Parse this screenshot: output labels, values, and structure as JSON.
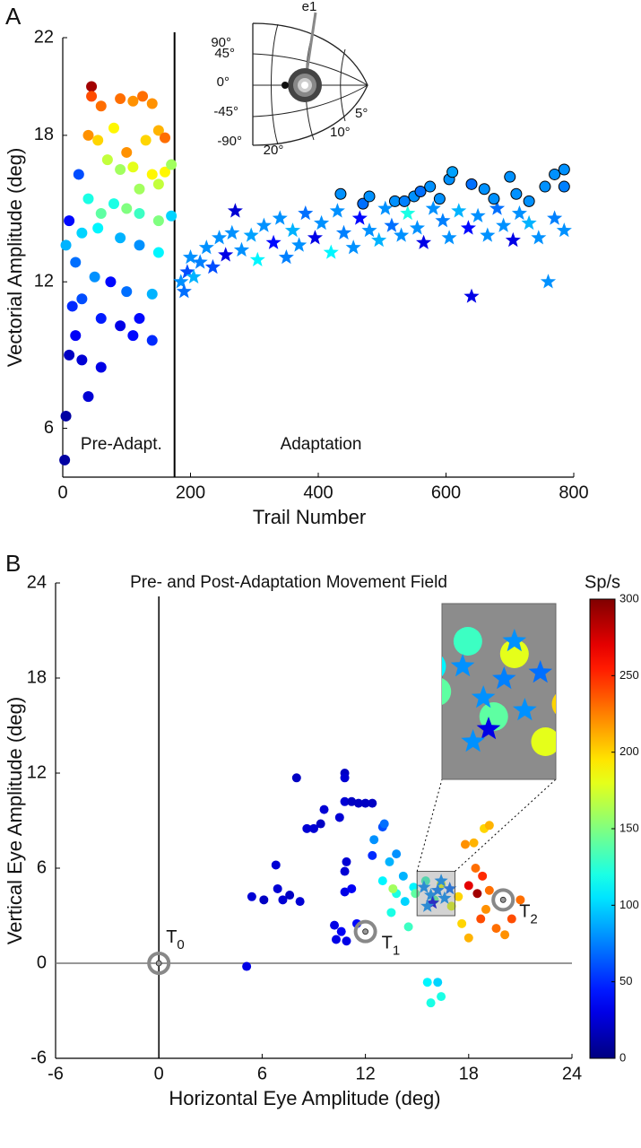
{
  "chart_data": [
    {
      "type": "scatter",
      "panel": "A",
      "xlabel": "Trail Number",
      "ylabel": "Vectorial Amplitude (deg)",
      "xlim": [
        0,
        800
      ],
      "ylim": [
        4,
        22
      ],
      "xticks": [
        0,
        200,
        400,
        600,
        800
      ],
      "yticks": [
        6,
        12,
        18,
        22
      ],
      "boundary": 175,
      "region_labels": [
        "Pre-Adapt.",
        "Adaptation"
      ],
      "inset_labels": [
        "90°",
        "45°",
        "0°",
        "-45°",
        "-90°",
        "5°",
        "10°",
        "20°",
        "e1"
      ],
      "colormap": "jet",
      "clim": [
        0,
        300
      ],
      "series": [
        {
          "marker": "circle",
          "x": [
            45,
            45,
            60,
            90,
            110,
            125,
            140,
            150,
            40,
            55,
            80,
            100,
            130,
            160,
            70,
            90,
            110,
            140,
            160,
            170,
            150,
            120,
            25,
            40,
            60,
            80,
            100,
            120,
            150,
            170,
            10,
            30,
            55,
            90,
            120,
            150,
            5,
            20,
            50,
            75,
            100,
            140,
            30,
            60,
            90,
            120,
            140,
            10,
            30,
            60,
            20,
            40,
            5,
            3,
            15,
            110
          ],
          "y": [
            20.0,
            19.6,
            19.2,
            19.5,
            19.4,
            19.6,
            19.3,
            18.2,
            18.0,
            17.8,
            18.3,
            17.3,
            17.8,
            17.9,
            17.0,
            16.6,
            16.7,
            16.4,
            16.5,
            16.8,
            16.0,
            15.8,
            16.4,
            15.4,
            14.8,
            15.2,
            15.0,
            14.8,
            14.5,
            14.7,
            14.5,
            14.0,
            14.2,
            13.8,
            13.5,
            13.2,
            13.5,
            12.8,
            12.2,
            12.0,
            11.6,
            11.5,
            11.3,
            10.5,
            10.2,
            10.5,
            9.6,
            9.0,
            8.8,
            8.5,
            9.8,
            7.3,
            6.5,
            4.7,
            11.0,
            9.8
          ],
          "rate": [
            290,
            240,
            230,
            230,
            220,
            230,
            220,
            210,
            220,
            200,
            190,
            220,
            200,
            230,
            170,
            160,
            180,
            190,
            190,
            160,
            170,
            160,
            60,
            120,
            140,
            120,
            150,
            130,
            150,
            100,
            40,
            100,
            110,
            90,
            80,
            110,
            90,
            70,
            80,
            40,
            70,
            90,
            60,
            45,
            30,
            40,
            50,
            20,
            25,
            30,
            35,
            25,
            10,
            10,
            50,
            40
          ]
        },
        {
          "marker": "star",
          "x": [
            185,
            190,
            195,
            200,
            205,
            215,
            225,
            235,
            245,
            255,
            265,
            270,
            280,
            295,
            305,
            315,
            330,
            340,
            350,
            360,
            370,
            380,
            395,
            405,
            420,
            430,
            440,
            455,
            465,
            480,
            495,
            505,
            515,
            530,
            540,
            555,
            565,
            580,
            595,
            605,
            620,
            635,
            640,
            650,
            665,
            680,
            690,
            705,
            715,
            730,
            745,
            760,
            770,
            785
          ],
          "y": [
            12.0,
            11.6,
            12.4,
            13.0,
            12.2,
            12.8,
            13.4,
            12.6,
            13.8,
            13.1,
            14.0,
            14.9,
            13.3,
            13.9,
            12.9,
            14.3,
            13.6,
            14.6,
            13.0,
            14.1,
            13.5,
            14.8,
            13.8,
            14.4,
            13.2,
            14.9,
            14.0,
            13.4,
            14.6,
            14.1,
            13.7,
            15.0,
            14.3,
            13.9,
            14.8,
            14.2,
            13.6,
            15.0,
            14.5,
            13.8,
            14.9,
            14.2,
            11.4,
            14.7,
            13.9,
            15.0,
            14.3,
            13.7,
            14.8,
            14.4,
            13.8,
            12.0,
            14.6,
            14.1
          ],
          "rate": [
            80,
            70,
            60,
            80,
            90,
            75,
            80,
            60,
            80,
            30,
            80,
            25,
            80,
            85,
            110,
            80,
            40,
            80,
            75,
            90,
            80,
            70,
            30,
            80,
            110,
            80,
            75,
            80,
            40,
            80,
            90,
            80,
            70,
            80,
            120,
            80,
            30,
            80,
            75,
            80,
            90,
            40,
            30,
            80,
            80,
            70,
            80,
            30,
            80,
            90,
            80,
            80,
            75,
            80
          ]
        },
        {
          "marker": "circle",
          "edgecolor": "#000000",
          "x": [
            435,
            470,
            480,
            520,
            535,
            550,
            560,
            575,
            590,
            605,
            610,
            640,
            660,
            675,
            700,
            710,
            730,
            755,
            770,
            785,
            785
          ],
          "y": [
            15.6,
            15.2,
            15.5,
            15.3,
            15.3,
            15.5,
            15.7,
            15.9,
            15.4,
            16.2,
            16.5,
            16.0,
            15.8,
            15.4,
            16.3,
            15.6,
            15.3,
            15.9,
            16.4,
            16.6,
            15.9
          ],
          "rate": [
            80,
            70,
            80,
            80,
            75,
            80,
            70,
            80,
            80,
            80,
            85,
            70,
            80,
            80,
            80,
            80,
            80,
            80,
            80,
            80,
            75
          ]
        }
      ]
    },
    {
      "type": "scatter",
      "panel": "B",
      "title": "Pre- and Post-Adaptation Movement Field",
      "xlabel": "Horizontal Eye Amplitude (deg)",
      "ylabel": "Vertical Eye Amplitude (deg)",
      "xlim": [
        -6,
        24
      ],
      "ylim": [
        -6,
        24
      ],
      "xticks": [
        -6,
        0,
        6,
        12,
        18,
        24
      ],
      "yticks": [
        -6,
        0,
        6,
        12,
        18,
        24
      ],
      "colormap": "jet",
      "colorbar": {
        "label": "Sp/s",
        "lim": [
          0,
          300
        ],
        "ticks": [
          0,
          50,
          100,
          150,
          200,
          250,
          300
        ]
      },
      "zoom_box": {
        "xlim": [
          15,
          17.2
        ],
        "ylim": [
          3,
          5.8
        ]
      },
      "targets": [
        {
          "label": "T",
          "subscript": "0",
          "x": 0,
          "y": 0
        },
        {
          "label": "T",
          "subscript": "1",
          "x": 12,
          "y": 2
        },
        {
          "label": "T",
          "subscript": "2",
          "x": 20,
          "y": 4
        }
      ],
      "series": [
        {
          "marker": "circle",
          "x": [
            8,
            10.8,
            10.8,
            10.8,
            11.2,
            11.6,
            12.0,
            12.4,
            9.6,
            10.5,
            9.4,
            9.0,
            8.6,
            6.8,
            5.4,
            6.1,
            6.9,
            7.2,
            7.6,
            8.2,
            10.9,
            10.8,
            10.8,
            11.2,
            10.2,
            10.6,
            10.3,
            10.9,
            11.5,
            5.1,
            12.4,
            13.0,
            13.1,
            12.5,
            13.4,
            13.8,
            14.2,
            13.0,
            13.8,
            14.3,
            14.8,
            13.5,
            15.5,
            16.0,
            16.4,
            17.0,
            17.4,
            17.8,
            18.3,
            18.4,
            18.8,
            19.2,
            19.0,
            18.7,
            19.6,
            20.5,
            21.0,
            20.1,
            17.6,
            18.0,
            18.9,
            19.2,
            15.6,
            16.2,
            16.4,
            15.8,
            14.9,
            13.6,
            14.5,
            18.5,
            18.0
          ],
          "y": [
            11.7,
            12.0,
            11.7,
            10.2,
            10.2,
            10.1,
            10.1,
            10.1,
            9.7,
            9.2,
            8.8,
            8.5,
            8.5,
            6.2,
            4.2,
            4.0,
            4.7,
            4.0,
            4.3,
            3.9,
            6.4,
            5.8,
            4.5,
            4.7,
            2.4,
            2.0,
            1.5,
            1.4,
            2.5,
            -0.2,
            6.8,
            8.6,
            8.8,
            7.8,
            6.4,
            6.9,
            5.5,
            5.2,
            4.4,
            3.9,
            4.8,
            3.2,
            5.2,
            4.0,
            5.0,
            3.6,
            4.2,
            7.5,
            7.6,
            6.0,
            5.5,
            4.6,
            3.4,
            2.8,
            2.2,
            2.8,
            4.0,
            1.8,
            2.5,
            1.6,
            8.5,
            8.7,
            -1.2,
            -1.2,
            -2.1,
            -2.5,
            4.4,
            4.7,
            2.3,
            4.4,
            4.9
          ],
          "rate": [
            20,
            20,
            25,
            25,
            20,
            20,
            20,
            20,
            25,
            25,
            20,
            25,
            25,
            25,
            25,
            20,
            25,
            25,
            20,
            25,
            25,
            25,
            30,
            35,
            30,
            35,
            30,
            30,
            40,
            30,
            50,
            60,
            70,
            80,
            90,
            80,
            90,
            110,
            120,
            100,
            110,
            120,
            130,
            140,
            180,
            180,
            200,
            220,
            210,
            230,
            250,
            230,
            220,
            240,
            230,
            240,
            230,
            220,
            200,
            210,
            200,
            210,
            110,
            100,
            120,
            120,
            140,
            160,
            130,
            290,
            270
          ]
        },
        {
          "marker": "star",
          "x": [
            15.4,
            15.8,
            16.2,
            16.6,
            15.9,
            16.4,
            15.6,
            16.9
          ],
          "y": [
            4.8,
            4.3,
            4.6,
            4.1,
            3.8,
            5.2,
            3.6,
            4.7
          ],
          "rate": [
            80,
            80,
            75,
            80,
            30,
            80,
            80,
            70
          ]
        }
      ]
    }
  ]
}
